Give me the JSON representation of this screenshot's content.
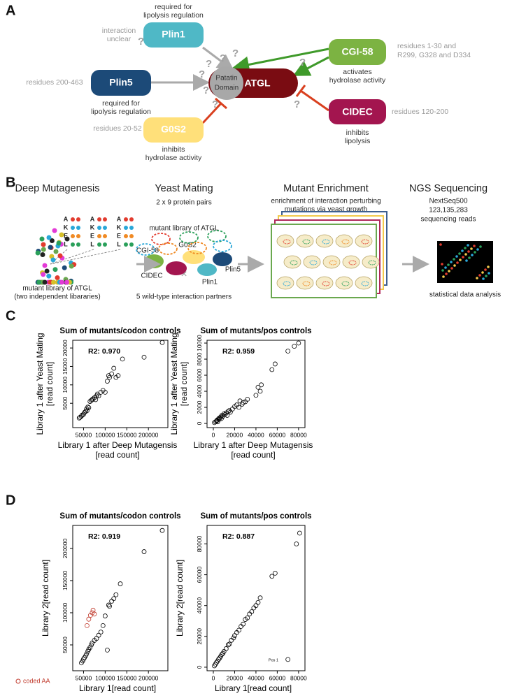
{
  "panel_a": {
    "label": "A",
    "q": "?",
    "center": "ATGL",
    "domain": [
      "Patatin",
      "Domain"
    ],
    "nodes": [
      {
        "label": "Plin1",
        "note": [
          "required for",
          "lipolysis regulation"
        ],
        "side": [
          "interaction",
          "unclear"
        ]
      },
      {
        "label": "Plin5",
        "note": [
          "required for",
          "lipolysis regulation"
        ],
        "side": [
          "residues 200-463"
        ]
      },
      {
        "label": "G0S2",
        "note": [
          "inhibits",
          "hydrolase activity"
        ],
        "side": [
          "residues 20-52"
        ]
      },
      {
        "label": "CGI-58",
        "note": [
          "activates",
          "hydrolase activity"
        ],
        "side": [
          "residues 1-30 and",
          "R299, G328 and D334"
        ]
      },
      {
        "label": "CIDEC",
        "note": [
          "inhibits",
          "lipolysis"
        ],
        "side": [
          "residues 120-200"
        ]
      }
    ]
  },
  "panel_b": {
    "label": "B",
    "letters": [
      "A",
      "K",
      "E",
      "L"
    ],
    "sections": [
      {
        "title": "Deep Mutagenesis",
        "caption": [
          "mutant library of ATGL",
          "(two independent libararies)"
        ]
      },
      {
        "title": "Yeast Mating",
        "note": [
          "2 x 9 protein pairs"
        ],
        "library": "mutant library of ATGL",
        "cross": "×",
        "caption": "5 wild-type interaction partners"
      },
      {
        "title": "Mutant Enrichment",
        "note": [
          "enrichment of interaction perturbing",
          "mutations via yeast growth"
        ]
      },
      {
        "title": "NGS Sequencing",
        "note": [
          "NextSeq500",
          "123,135,283",
          "sequencing reads"
        ],
        "caption": "statistical data analysis"
      }
    ],
    "partners": [
      "CGI-58",
      "G0S2",
      "Plin5",
      "CIDEC",
      "Plin1"
    ]
  },
  "panel_c": "C",
  "panel_d": "D",
  "chart_data": [
    {
      "type": "scatter",
      "title": "Sum of mutants/codon controls",
      "annotation": "R2: 0.970",
      "xlabel": [
        "Library 1 after Deep Mutagensis",
        "[read count]"
      ],
      "ylabel": [
        "Library 1 after Yeast Mating",
        "[read count]"
      ],
      "xlim": [
        25000,
        245000
      ],
      "ylim": [
        -1600,
        22100
      ],
      "xticks": [
        50000,
        100000,
        150000,
        200000
      ],
      "yticks": [
        5000,
        10000,
        15000,
        20000
      ],
      "series": [
        {
          "color": "#000000",
          "x": [
            40000,
            42000,
            45000,
            47000,
            50000,
            52000,
            55000,
            57000,
            58000,
            60000,
            62000,
            65000,
            68000,
            70000,
            72000,
            75000,
            78000,
            80000,
            82000,
            85000,
            90000,
            95000,
            100000,
            105000,
            108000,
            110000,
            115000,
            120000,
            125000,
            130000,
            140000,
            190000,
            232000
          ],
          "values": [
            1000,
            1200,
            1500,
            1800,
            2000,
            2500,
            2800,
            3500,
            3000,
            4000,
            3800,
            5500,
            5800,
            6000,
            6200,
            6500,
            6000,
            7000,
            7500,
            7000,
            8000,
            8500,
            8000,
            11000,
            12500,
            12000,
            13000,
            14500,
            12000,
            12500,
            17000,
            17500,
            21500
          ]
        }
      ]
    },
    {
      "type": "scatter",
      "title": "Sum of mutants/pos controls",
      "annotation": "R2: 0.959",
      "xlabel": [
        "Library 1 after Deep Mutagensis",
        "[read count]"
      ],
      "ylabel": [
        "Library 1 after Yeast Mating",
        "[read count]"
      ],
      "xlim": [
        -5900,
        86000
      ],
      "ylim": [
        -520,
        10350
      ],
      "xticks": [
        0,
        20000,
        40000,
        60000,
        80000
      ],
      "yticks": [
        0,
        2000,
        4000,
        6000,
        8000,
        10000
      ],
      "series": [
        {
          "color": "#000000",
          "x": [
            1000,
            2000,
            3000,
            3500,
            4000,
            5000,
            5500,
            6000,
            7000,
            7500,
            8000,
            9000,
            10000,
            11000,
            12000,
            13000,
            14000,
            15000,
            16000,
            18000,
            20000,
            22000,
            24000,
            25000,
            27000,
            28000,
            30000,
            32000,
            40000,
            42000,
            44000,
            45000,
            55000,
            58000,
            70000,
            76000,
            80000
          ],
          "values": [
            100,
            200,
            300,
            400,
            200,
            600,
            500,
            700,
            800,
            600,
            1000,
            900,
            1200,
            1100,
            1300,
            1000,
            1500,
            1600,
            1400,
            1800,
            2100,
            2300,
            2000,
            2800,
            2400,
            2600,
            2700,
            3000,
            3500,
            4500,
            4000,
            4800,
            6700,
            7400,
            9000,
            9600,
            10000
          ]
        }
      ]
    },
    {
      "type": "scatter",
      "title": "Sum of mutants/codon controls",
      "annotation": "R2: 0.919",
      "xlabel": [
        "Library 1[read count]"
      ],
      "ylabel": [
        "Library 2[read count]"
      ],
      "xlim": [
        25000,
        245000
      ],
      "ylim": [
        9800,
        235800
      ],
      "xticks": [
        50000,
        100000,
        150000,
        200000
      ],
      "yticks": [
        50000,
        100000,
        150000,
        200000
      ],
      "series": [
        {
          "color": "#000000",
          "x": [
            45000,
            48000,
            50000,
            52000,
            55000,
            57000,
            60000,
            62000,
            65000,
            68000,
            70000,
            75000,
            80000,
            85000,
            90000,
            95000,
            100000,
            105000,
            108000,
            110000,
            115000,
            120000,
            125000,
            135000,
            190000,
            232000
          ],
          "values": [
            22000,
            25000,
            28000,
            30000,
            33000,
            36000,
            40000,
            43000,
            46000,
            50000,
            53000,
            57000,
            60000,
            65000,
            70000,
            80000,
            95000,
            42000,
            112000,
            110000,
            118000,
            122000,
            128000,
            145000,
            195000,
            228000
          ]
        },
        {
          "name": "coded AA",
          "color": "#c0392b",
          "x": [
            58000,
            62000,
            66000,
            70000,
            72000,
            75000
          ],
          "values": [
            80000,
            90000,
            96000,
            100000,
            104000,
            98000
          ]
        }
      ]
    },
    {
      "type": "scatter",
      "title": "Sum of mutants/pos controls",
      "annotation": "R2: 0.887",
      "point_label": "Pos 1",
      "xlabel": [
        "Library 1[read count]"
      ],
      "ylabel": [
        "Library 2[read count]"
      ],
      "xlim": [
        -5900,
        86000
      ],
      "ylim": [
        -2300,
        92000
      ],
      "xticks": [
        0,
        20000,
        40000,
        60000,
        80000
      ],
      "yticks": [
        0,
        20000,
        40000,
        60000,
        80000
      ],
      "series": [
        {
          "color": "#000000",
          "x": [
            1000,
            2000,
            3000,
            4000,
            5000,
            6000,
            7000,
            8000,
            9000,
            10000,
            12000,
            14000,
            15000,
            17000,
            19000,
            20000,
            22000,
            24000,
            26000,
            28000,
            30000,
            32000,
            34000,
            36000,
            38000,
            40000,
            42000,
            44000,
            55000,
            58000,
            70000,
            78000,
            81000
          ],
          "values": [
            900,
            2000,
            3100,
            4000,
            5200,
            6000,
            7100,
            8300,
            9000,
            10200,
            12000,
            14500,
            15000,
            17500,
            19000,
            20500,
            22500,
            24000,
            26500,
            28000,
            31000,
            32000,
            34500,
            36000,
            38500,
            40000,
            42000,
            45000,
            59000,
            61000,
            5000,
            80000,
            87000
          ]
        }
      ]
    }
  ]
}
